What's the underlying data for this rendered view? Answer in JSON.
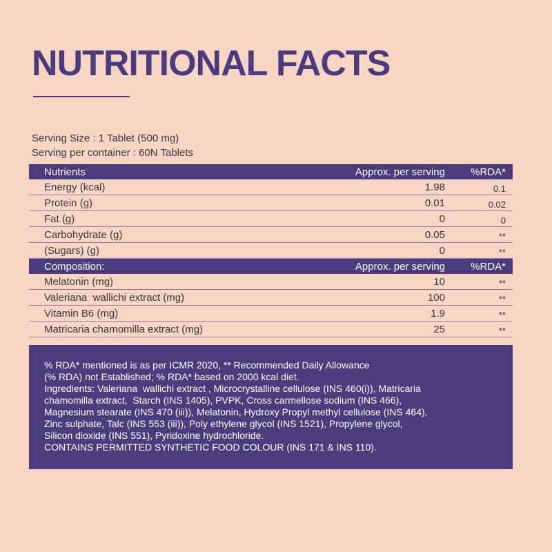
{
  "header": {
    "title": "NUTRITIONAL FACTS"
  },
  "serving": [
    "Serving Size : 1 Tablet (500 mg)",
    "Serving per container : 60N  Tablets"
  ],
  "sections": [
    {
      "header": [
        "Nutrients",
        "Approx. per serving",
        "%RDA*"
      ],
      "rows": [
        [
          "Energy (kcal)",
          "1.98",
          "0.1"
        ],
        [
          "Protein (g)",
          "0.01",
          "0.02"
        ],
        [
          "Fat (g)",
          "0",
          "0"
        ],
        [
          "Carbohydrate (g)",
          "0.05",
          "**"
        ],
        [
          "(Sugars) (g)",
          "0",
          "**"
        ]
      ]
    },
    {
      "header": [
        "Composition:",
        "Approx. per serving",
        "%RDA*"
      ],
      "rows": [
        [
          "Melatonin (mg)",
          "10",
          "**"
        ],
        [
          "Valeriana  wallichi extract (mg)",
          "100",
          "**"
        ],
        [
          "Vitamin B6 (mg)",
          "1.9",
          "**"
        ],
        [
          "Matricaria chamomilla extract (mg)",
          "25",
          "**"
        ]
      ]
    }
  ],
  "footer": [
    "% RDA* mentioned is as per ICMR 2020, ** Recommended Daily Allowance",
    "(% RDA) not Established; % RDA* based on 2000 kcal diet.",
    "Ingredients: Valeriana  wallichi extract , Microcrystalline cellulose (INS 460(i)), Matricaria",
    "chamomilla extract,  Starch (INS 1405), PVPK, Cross carmellose sodium (INS 466),",
    "Magnesium stearate (INS 470 (iii)), Melatonin, Hydroxy Propyl methyl cellulose (INS 464),",
    "Zinc sulphate, Talc (INS 553 (iii)), Poly ethylene glycol (INS 1521), Propylene glycol,",
    "Silicon dioxide (INS 551), Pyridoxine hydrochloride.",
    "CONTAINS PERMITTED SYNTHETIC FOOD COLOUR (INS 171 & INS 110)."
  ]
}
